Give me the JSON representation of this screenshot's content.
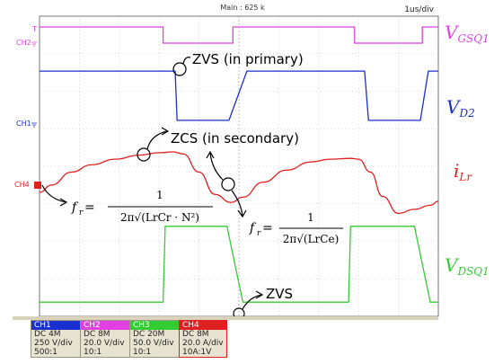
{
  "header": {
    "main_label": "Main : 625 k",
    "timebase": "1us/div"
  },
  "markers": {
    "t": "T",
    "ch2": "CH2",
    "ch1": "CH1",
    "ch4": "CH4"
  },
  "side_labels": {
    "vgs_main": "V",
    "vgs_sub": "GSQ1",
    "vd2_main": "V",
    "vd2_sub": "D2",
    "ilr_main": "i",
    "ilr_sub": "Lr",
    "vds_main": "V",
    "vds_sub": "DSQ1"
  },
  "annotations": {
    "zvs_primary": "ZVS (in primary)",
    "zcs_secondary": "ZCS (in secondary)",
    "zvs": "ZVS"
  },
  "formulas": {
    "fr_prefix": "f",
    "fr_sub": "r",
    "equals": " = ",
    "one": "1",
    "formula1_den": "2π√(LrCr · N²)",
    "formula2_den": "2π√(LrCe)"
  },
  "channels": [
    {
      "name": "CH1",
      "color": "#1a2fd0",
      "coupling": "DC 4M",
      "scale": "250 V/div",
      "probe": "500:1"
    },
    {
      "name": "CH2",
      "color": "#e040e0",
      "coupling": "DC 8M",
      "scale": "20.0 V/div",
      "probe": "10:1"
    },
    {
      "name": "CH3",
      "color": "#33cc33",
      "coupling": "DC 20M",
      "scale": "50.0 V/div",
      "probe": "10:1"
    },
    {
      "name": "CH4",
      "color": "#e02020",
      "coupling": "DC 8M",
      "scale": "20.0 A/div",
      "probe": "10A:1V"
    }
  ],
  "chart_data": {
    "type": "line",
    "title": "",
    "xlabel": "",
    "ylabel": "",
    "time_per_div_us": 1,
    "divisions": 10,
    "grid": true,
    "legend": "right",
    "x_unit": "us",
    "series": [
      {
        "name": "VGSQ1",
        "color": "#e040e0",
        "x": [
          0,
          0.2,
          3.1,
          3.1,
          4.85,
          4.85,
          7.9,
          7.9,
          9.6,
          9.6,
          10
        ],
        "y": [
          1,
          1,
          1,
          0,
          0,
          1,
          1,
          0,
          0,
          1,
          1
        ]
      },
      {
        "name": "VD2",
        "color": "#1a2fd0",
        "x": [
          0,
          0.15,
          3.4,
          3.45,
          4.75,
          5.2,
          8.15,
          8.25,
          9.55,
          9.75,
          10
        ],
        "y": [
          0.98,
          0.98,
          0.98,
          0.02,
          0.02,
          0.98,
          0.98,
          0.02,
          0.02,
          0.98,
          0.98
        ]
      },
      {
        "name": "iLr",
        "color": "#e02020",
        "x": [
          0,
          0.3,
          0.8,
          1.3,
          1.9,
          2.5,
          3.0,
          3.35,
          3.6,
          4.0,
          4.4,
          4.8,
          5.1,
          5.6,
          6.2,
          6.8,
          7.3,
          7.8,
          8.0,
          8.3,
          8.6,
          9.0,
          9.4,
          9.8,
          10
        ],
        "y": [
          -0.2,
          -0.02,
          0.3,
          0.48,
          0.62,
          0.72,
          0.78,
          0.8,
          0.75,
          0.3,
          -0.25,
          -0.45,
          -0.32,
          0.05,
          0.35,
          0.55,
          0.62,
          0.64,
          0.62,
          0.3,
          -0.3,
          -0.72,
          -0.62,
          -0.52,
          -0.42
        ]
      },
      {
        "name": "VDSQ1",
        "color": "#33cc33",
        "x": [
          0,
          0.1,
          3.1,
          3.15,
          4.7,
          5.1,
          7.75,
          7.8,
          9.4,
          9.8,
          10
        ],
        "y": [
          0.02,
          0.02,
          0.02,
          0.98,
          0.98,
          0.02,
          0.02,
          0.98,
          0.98,
          0.02,
          0.02
        ]
      }
    ],
    "annotations": [
      "ZVS (in primary)",
      "ZCS (in secondary)",
      "ZVS"
    ]
  }
}
